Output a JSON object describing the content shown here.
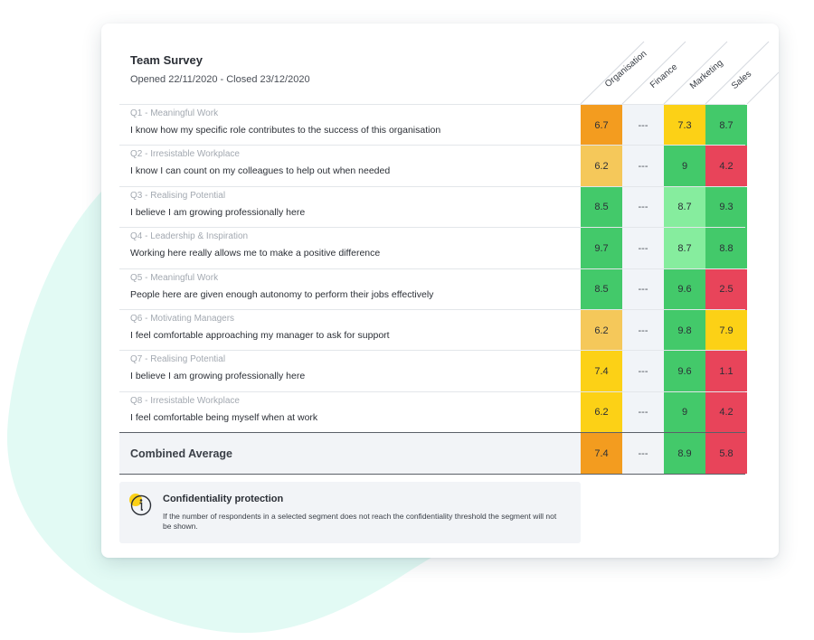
{
  "survey": {
    "title": "Team Survey",
    "subtitle": "Opened 22/11/2020 - Closed 23/12/2020"
  },
  "columns": [
    "Organisation",
    "Finance",
    "Marketing",
    "Sales"
  ],
  "colors": {
    "orange": "#f39c1f",
    "amber": "#f5c85a",
    "yellow": "#fcd116",
    "green": "#43c96a",
    "light_green": "#86ed9e",
    "red": "#e8445a",
    "finance_bg": "#f1f4f8",
    "blob": "#e2faf4"
  },
  "rows": [
    {
      "category": "Q1 - Meaningful Work",
      "question": "I know how my specific role contributes to the success of this organisation",
      "values": [
        "6.7",
        "---",
        "7.3",
        "8.7"
      ],
      "colors": [
        "orange",
        "none",
        "yellow",
        "green"
      ]
    },
    {
      "category": "Q2 - Irresistable Workplace",
      "question": "I know I can count on my colleagues to help out when needed",
      "values": [
        "6.2",
        "---",
        "9",
        "4.2"
      ],
      "colors": [
        "amber",
        "none",
        "green",
        "red"
      ]
    },
    {
      "category": "Q3 - Realising Potential",
      "question": "I believe I am growing professionally here",
      "values": [
        "8.5",
        "---",
        "8.7",
        "9.3"
      ],
      "colors": [
        "green",
        "none",
        "light_green",
        "green"
      ]
    },
    {
      "category": "Q4 - Leadership & Inspiration",
      "question": "Working here really allows me to make a positive difference",
      "values": [
        "9.7",
        "---",
        "8.7",
        "8.8"
      ],
      "colors": [
        "green",
        "none",
        "light_green",
        "green"
      ]
    },
    {
      "category": "Q5 - Meaningful Work",
      "question": "People here are given enough autonomy to perform their jobs effectively",
      "values": [
        "8.5",
        "---",
        "9.6",
        "2.5"
      ],
      "colors": [
        "green",
        "none",
        "green",
        "red"
      ]
    },
    {
      "category": "Q6 - Motivating Managers",
      "question": "I feel comfortable approaching my manager to ask for support",
      "values": [
        "6.2",
        "---",
        "9.8",
        "7.9"
      ],
      "colors": [
        "amber",
        "none",
        "green",
        "yellow"
      ]
    },
    {
      "category": "Q7 - Realising Potential",
      "question": "I believe I am growing professionally here",
      "values": [
        "7.4",
        "---",
        "9.6",
        "1.1"
      ],
      "colors": [
        "yellow",
        "none",
        "green",
        "red"
      ]
    },
    {
      "category": "Q8 - Irresistable Workplace",
      "question": "I feel comfortable being myself when at work",
      "values": [
        "6.2",
        "---",
        "9",
        "4.2"
      ],
      "colors": [
        "yellow",
        "none",
        "green",
        "red"
      ]
    }
  ],
  "average": {
    "label": "Combined Average",
    "values": [
      "7.4",
      "---",
      "8.9",
      "5.8"
    ],
    "colors": [
      "orange",
      "none",
      "green",
      "red"
    ]
  },
  "notice": {
    "icon": "info-icon",
    "title": "Confidentiality protection",
    "text": "If the number of respondents in a selected segment does not reach the confidentiality threshold the segment will not be shown."
  }
}
